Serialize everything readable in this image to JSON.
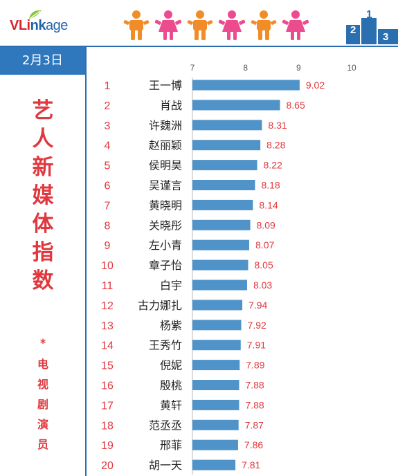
{
  "brand": {
    "logo_text_vl": "VLi",
    "logo_text_nk": "nk",
    "logo_text_age": "age"
  },
  "date": "2月3日",
  "title_chars": [
    "艺",
    "人",
    "新",
    "媒",
    "体",
    "指",
    "数"
  ],
  "title_star": "*",
  "subtitle_chars": [
    "电",
    "视",
    "剧",
    "演",
    "员"
  ],
  "podium_digits": [
    "2",
    "1",
    "3"
  ],
  "colors": {
    "accent_red": "#e0383e",
    "bar_blue": "#4f93c9",
    "header_blue": "#2f78bd",
    "person_orange": "#f28c28",
    "person_pink": "#ec4b8e"
  },
  "chart_data": {
    "type": "bar",
    "orientation": "horizontal",
    "x_ticks": [
      "7",
      "8",
      "9",
      "10"
    ],
    "xlim": [
      7,
      10
    ],
    "ranks": [
      "1",
      "2",
      "3",
      "4",
      "5",
      "6",
      "7",
      "8",
      "9",
      "10",
      "11",
      "12",
      "13",
      "14",
      "15",
      "16",
      "17",
      "18",
      "19",
      "20"
    ],
    "categories": [
      "王一博",
      "肖战",
      "许魏洲",
      "赵丽颖",
      "侯明昊",
      "吴谨言",
      "黄晓明",
      "关晓彤",
      "左小青",
      "章子怡",
      "白宇",
      "古力娜扎",
      "杨紫",
      "王秀竹",
      "倪妮",
      "殷桃",
      "黄轩",
      "范丞丞",
      "邢菲",
      "胡一天"
    ],
    "values": [
      9.02,
      8.65,
      8.31,
      8.28,
      8.22,
      8.18,
      8.14,
      8.09,
      8.07,
      8.05,
      8.03,
      7.94,
      7.92,
      7.91,
      7.89,
      7.88,
      7.88,
      7.87,
      7.86,
      7.81
    ],
    "value_labels": [
      "9.02",
      "8.65",
      "8.31",
      "8.28",
      "8.22",
      "8.18",
      "8.14",
      "8.09",
      "8.07",
      "8.05",
      "8.03",
      "7.94",
      "7.92",
      "7.91",
      "7.89",
      "7.88",
      "7.88",
      "7.87",
      "7.86",
      "7.81"
    ]
  }
}
